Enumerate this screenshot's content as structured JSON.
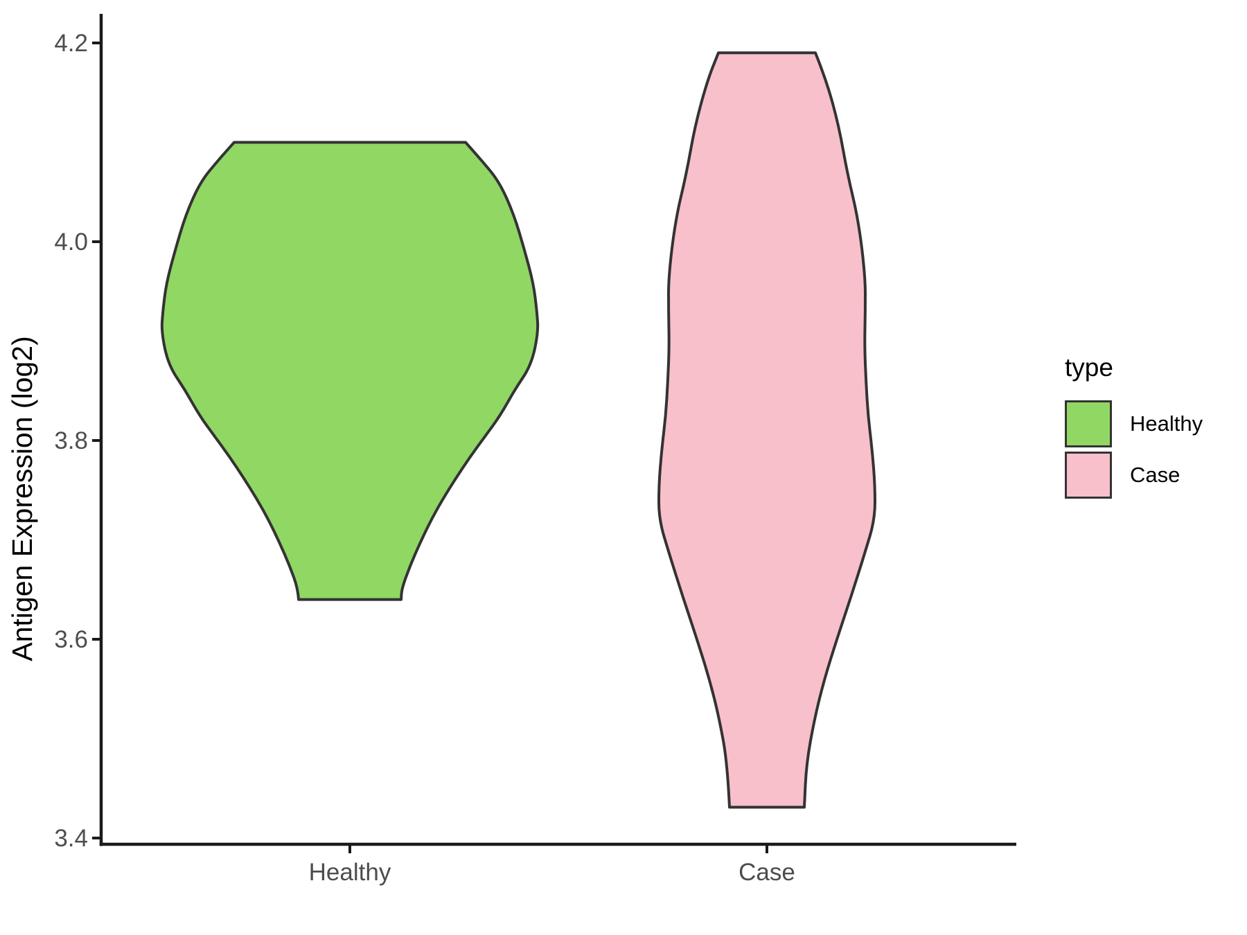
{
  "figure": {
    "background": "#ffffff"
  },
  "legend": {
    "title": "type",
    "items": [
      {
        "label": "Healthy",
        "color": "#90D763"
      },
      {
        "label": "Case",
        "color": "#F8C0CB"
      }
    ]
  },
  "chart_data": {
    "type": "violin",
    "title": "",
    "xlabel": "",
    "ylabel": "Antigen Expression (log2)",
    "categories": [
      "Healthy",
      "Case"
    ],
    "ylim": [
      3.4,
      4.2
    ],
    "y_ticks": [
      3.4,
      3.6,
      3.8,
      4.0,
      4.2
    ],
    "y_tick_labels": [
      "3.4",
      "3.6",
      "3.8",
      "4.0",
      "4.2"
    ],
    "legend_position": "right",
    "grid": false,
    "style": {
      "axis_color": "#1a1a1a",
      "tick_label_color": "#4d4d4d",
      "text_color": "#000000",
      "violin_outline": "#333333"
    },
    "series": [
      {
        "name": "Healthy",
        "fill": "#90D763",
        "outline": "#333333",
        "value_range": [
          3.64,
          4.1
        ],
        "profile": [
          [
            4.1,
            167
          ],
          [
            4.082,
            190
          ],
          [
            4.06,
            216
          ],
          [
            4.027,
            237
          ],
          [
            3.992,
            252
          ],
          [
            3.958,
            265
          ],
          [
            3.93,
            270
          ],
          [
            3.909,
            272
          ],
          [
            3.876,
            262
          ],
          [
            3.851,
            238
          ],
          [
            3.825,
            217
          ],
          [
            3.804,
            195
          ],
          [
            3.783,
            173
          ],
          [
            3.762,
            153
          ],
          [
            3.742,
            135
          ],
          [
            3.721,
            118
          ],
          [
            3.698,
            102
          ],
          [
            3.674,
            87
          ],
          [
            3.651,
            75
          ],
          [
            3.64,
            74
          ]
        ]
      },
      {
        "name": "Case",
        "fill": "#F8C0CB",
        "outline": "#333333",
        "value_range": [
          3.43,
          4.19
        ],
        "profile": [
          [
            4.19,
            70
          ],
          [
            4.162,
            86
          ],
          [
            4.116,
            104
          ],
          [
            4.069,
            116
          ],
          [
            4.022,
            132
          ],
          [
            3.965,
            142
          ],
          [
            3.93,
            142
          ],
          [
            3.895,
            141
          ],
          [
            3.86,
            143
          ],
          [
            3.825,
            146
          ],
          [
            3.79,
            152
          ],
          [
            3.755,
            156
          ],
          [
            3.721,
            156
          ],
          [
            3.686,
            141
          ],
          [
            3.644,
            122
          ],
          [
            3.6,
            101
          ],
          [
            3.56,
            83
          ],
          [
            3.521,
            69
          ],
          [
            3.475,
            57
          ],
          [
            3.431,
            54
          ]
        ]
      }
    ]
  }
}
